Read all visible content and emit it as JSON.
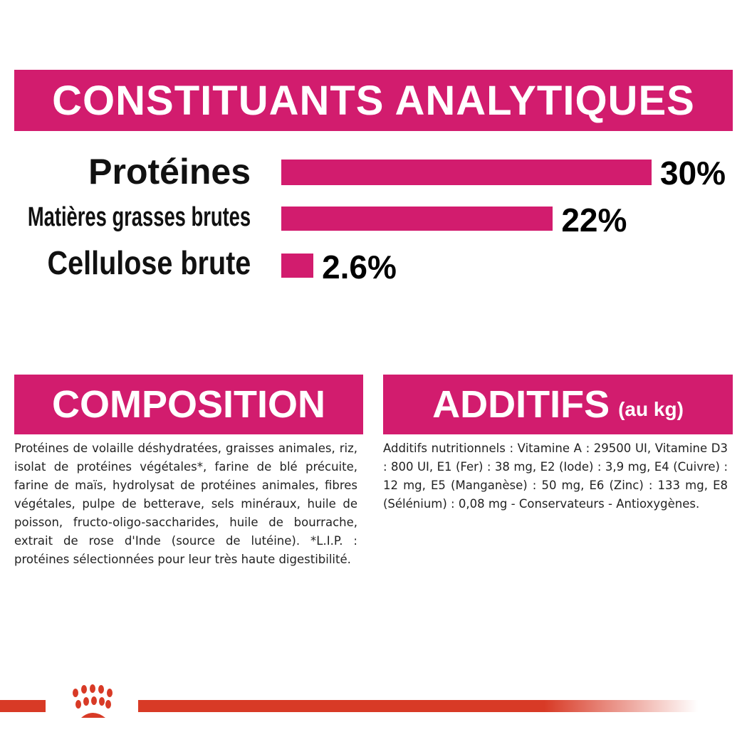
{
  "header": {
    "title": "CONSTITUANTS ANALYTIQUES"
  },
  "chart_data": {
    "type": "bar",
    "orientation": "horizontal",
    "categories": [
      "Protéines",
      "Matières grasses brutes",
      "Cellulose brute"
    ],
    "values": [
      30,
      22,
      2.6
    ],
    "value_labels": [
      "30%",
      "22%",
      "2.6%"
    ],
    "unit": "%",
    "bar_color": "#d21c6e",
    "grid": false
  },
  "composition": {
    "title": "COMPOSITION",
    "text": "Protéines de volaille déshydratées, graisses animales, riz, isolat de protéines végétales*, farine de blé précuite, farine de maïs, hydrolysat de protéines animales, fibres végétales, pulpe de betterave, sels minéraux, huile de poisson, fructo-oligo-saccharides, huile de bourrache, extrait de rose d'Inde (source de lutéine). *L.I.P. : protéines sélectionnées pour leur très haute digestibilité."
  },
  "additifs": {
    "title": "ADDITIFS",
    "subtitle": "(au kg)",
    "text": "Additifs nutritionnels : Vitamine A : 29500 UI, Vitamine D3 : 800 UI, E1 (Fer) : 38 mg, E2 (Iode) : 3,9 mg, E4 (Cuivre) : 12 mg, E5 (Manganèse) : 50 mg, E6 (Zinc) : 133 mg, E8 (Sélénium) : 0,08 mg - Conservateurs - Antioxygènes."
  },
  "colors": {
    "accent": "#d21c6e",
    "footer": "#d83a26"
  },
  "footer": {
    "logo": "royal-canin-crown-logo"
  }
}
